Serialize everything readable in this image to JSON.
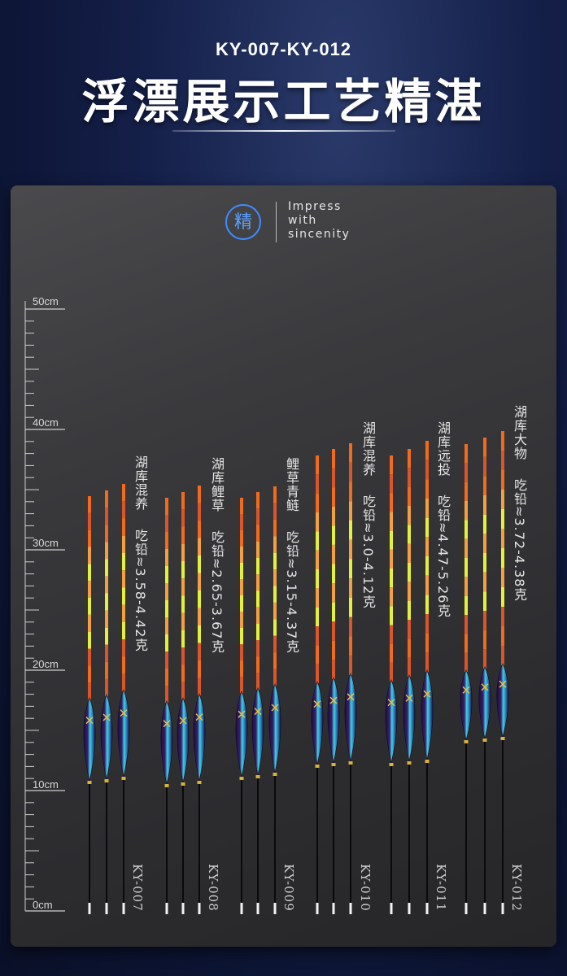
{
  "header": {
    "model_range": "KY-007-KY-012",
    "title": "浮漂展示工艺精湛"
  },
  "badge": {
    "char": "精",
    "slogan_lines": [
      "Impress",
      "with",
      "sincenity"
    ]
  },
  "ruler": {
    "labels": [
      "50cm",
      "40cm",
      "30cm",
      "20cm",
      "10cm",
      "0cm"
    ]
  },
  "colors": {
    "tip_orange": "#f26a1b",
    "tip_yellow": "#e6f03a",
    "body_purple": "#3a1f6a",
    "body_cyan": "#3fd1e6",
    "accent_blue": "#3f8cff"
  },
  "floats": [
    {
      "model": "KY-007",
      "name": "湖库混养",
      "lead": "吃铅≈3.58-4.42克"
    },
    {
      "model": "KY-008",
      "name": "湖库鲤草",
      "lead": "吃铅≈2.65-3.67克"
    },
    {
      "model": "KY-009",
      "name": "鲤草青鲢",
      "lead": "吃铅≈3.15-4.37克"
    },
    {
      "model": "KY-010",
      "name": "湖库混养",
      "lead": "吃铅≈3.0-4.12克"
    },
    {
      "model": "KY-011",
      "name": "湖库远投",
      "lead": "吃铅≈4.47-5.26克"
    },
    {
      "model": "KY-012",
      "name": "湖库大物",
      "lead": "吃铅≈3.72-4.38克"
    }
  ]
}
